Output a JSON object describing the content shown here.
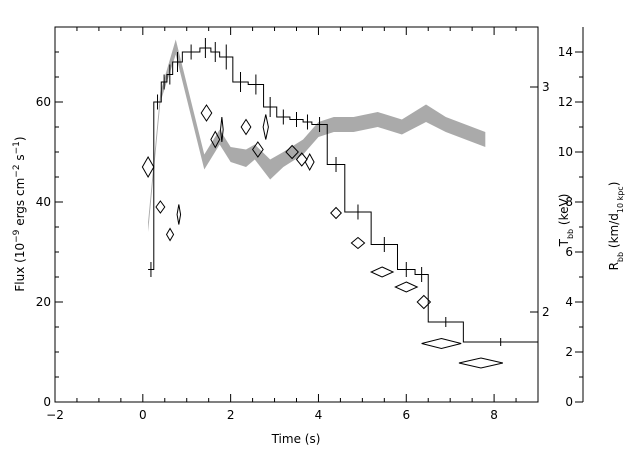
{
  "chart_data": {
    "type": "line",
    "title": "",
    "xlabel": "Time (s)",
    "ylabel_left": "Flux (10⁻⁹ ergs cm⁻² s⁻¹)",
    "ylabel_right_inner": "T_bb (keV)",
    "ylabel_right_outer": "R_bb (km/d_10 kpc)",
    "xlim": [
      -2,
      9
    ],
    "ylim_left": [
      0,
      75
    ],
    "ylim_right_outer": [
      0,
      15
    ],
    "x_ticks": [
      -2,
      0,
      2,
      4,
      6,
      8
    ],
    "x_tick_labels": [
      "−2",
      "0",
      "2",
      "4",
      "6",
      "8"
    ],
    "y_left_ticks": [
      0,
      20,
      40,
      60
    ],
    "y_left_tick_labels": [
      "0",
      "20",
      "40",
      "60"
    ],
    "y_right_outer_ticks": [
      0,
      2,
      4,
      6,
      8,
      10,
      12,
      14
    ],
    "y_right_outer_tick_labels": [
      "0",
      "2",
      "4",
      "6",
      "8",
      "10",
      "12",
      "14"
    ],
    "y_right_inner_ticks_keV": [
      2,
      3
    ],
    "y_right_inner_tick_labels": [
      "2",
      "3"
    ],
    "y_right_inner_tick_positions_flux_units": [
      18.0,
      63.0
    ],
    "series": [
      {
        "kind": "step-with-errorbars",
        "color": "#000000",
        "bins": [
          {
            "x0": 0.12,
            "x1": 0.25,
            "y": 26.5,
            "err": 1.5
          },
          {
            "x0": 0.25,
            "x1": 0.42,
            "y": 60.0,
            "err": 1.5
          },
          {
            "x0": 0.42,
            "x1": 0.55,
            "y": 64.0,
            "err": 1.5
          },
          {
            "x0": 0.55,
            "x1": 0.68,
            "y": 65.5,
            "err": 2.0
          },
          {
            "x0": 0.68,
            "x1": 0.9,
            "y": 68.0,
            "err": 2.0
          },
          {
            "x0": 0.9,
            "x1": 1.3,
            "y": 70.0,
            "err": 1.5
          },
          {
            "x0": 1.3,
            "x1": 1.55,
            "y": 70.8,
            "err": 2.0
          },
          {
            "x0": 1.55,
            "x1": 1.75,
            "y": 70.0,
            "err": 2.0
          },
          {
            "x0": 1.75,
            "x1": 2.05,
            "y": 69.0,
            "err": 2.5
          },
          {
            "x0": 2.05,
            "x1": 2.4,
            "y": 64.0,
            "err": 2.0
          },
          {
            "x0": 2.4,
            "x1": 2.75,
            "y": 63.5,
            "err": 2.0
          },
          {
            "x0": 2.75,
            "x1": 3.05,
            "y": 59.0,
            "err": 2.0
          },
          {
            "x0": 3.05,
            "x1": 3.35,
            "y": 57.0,
            "err": 1.5
          },
          {
            "x0": 3.35,
            "x1": 3.65,
            "y": 56.5,
            "err": 1.5
          },
          {
            "x0": 3.65,
            "x1": 3.85,
            "y": 56.0,
            "err": 1.5
          },
          {
            "x0": 3.85,
            "x1": 4.2,
            "y": 55.5,
            "err": 1.5
          },
          {
            "x0": 4.2,
            "x1": 4.6,
            "y": 47.5,
            "err": 1.5
          },
          {
            "x0": 4.6,
            "x1": 5.2,
            "y": 38.0,
            "err": 1.5
          },
          {
            "x0": 5.2,
            "x1": 5.8,
            "y": 31.5,
            "err": 1.5
          },
          {
            "x0": 5.8,
            "x1": 6.2,
            "y": 26.5,
            "err": 1.5
          },
          {
            "x0": 6.2,
            "x1": 6.5,
            "y": 25.5,
            "err": 1.5
          },
          {
            "x0": 6.5,
            "x1": 7.3,
            "y": 16.0,
            "err": 1.0
          },
          {
            "x0": 7.3,
            "x1": 9.0,
            "y": 12.0,
            "err": 0.8
          }
        ]
      },
      {
        "kind": "shaded-band",
        "color": "#aaaaaa",
        "points": [
          {
            "x": 0.12,
            "lo": 34.0,
            "hi": 36.0
          },
          {
            "x": 0.4,
            "lo": 60.0,
            "hi": 62.0
          },
          {
            "x": 0.75,
            "lo": 69.5,
            "hi": 72.5
          },
          {
            "x": 1.4,
            "lo": 46.5,
            "hi": 49.5
          },
          {
            "x": 1.75,
            "lo": 51.5,
            "hi": 54.5
          },
          {
            "x": 2.0,
            "lo": 48.0,
            "hi": 51.0
          },
          {
            "x": 2.35,
            "lo": 47.0,
            "hi": 50.5
          },
          {
            "x": 2.55,
            "lo": 48.5,
            "hi": 51.5
          },
          {
            "x": 2.9,
            "lo": 44.5,
            "hi": 48.5
          },
          {
            "x": 3.2,
            "lo": 47.0,
            "hi": 50.0
          },
          {
            "x": 3.65,
            "lo": 49.5,
            "hi": 52.5
          },
          {
            "x": 4.0,
            "lo": 53.0,
            "hi": 56.0
          },
          {
            "x": 4.35,
            "lo": 54.0,
            "hi": 57.0
          },
          {
            "x": 4.8,
            "lo": 54.0,
            "hi": 57.0
          },
          {
            "x": 5.35,
            "lo": 55.0,
            "hi": 58.0
          },
          {
            "x": 5.9,
            "lo": 53.5,
            "hi": 56.5
          },
          {
            "x": 6.45,
            "lo": 56.0,
            "hi": 59.5
          },
          {
            "x": 6.9,
            "lo": 54.0,
            "hi": 57.0
          },
          {
            "x": 7.8,
            "lo": 51.0,
            "hi": 54.0
          }
        ]
      },
      {
        "kind": "diamonds",
        "color": "#000000",
        "points": [
          {
            "x": 0.12,
            "y": 47.0,
            "xerr": 0.13,
            "yerr": 2.0
          },
          {
            "x": 0.4,
            "y": 39.0,
            "xerr": 0.1,
            "yerr": 1.2
          },
          {
            "x": 0.62,
            "y": 33.5,
            "xerr": 0.08,
            "yerr": 1.2
          },
          {
            "x": 0.82,
            "y": 37.5,
            "xerr": 0.04,
            "yerr": 2.0
          },
          {
            "x": 1.45,
            "y": 57.8,
            "xerr": 0.12,
            "yerr": 1.6
          },
          {
            "x": 1.65,
            "y": 52.5,
            "xerr": 0.1,
            "yerr": 1.6
          },
          {
            "x": 1.8,
            "y": 54.5,
            "xerr": 0.03,
            "yerr": 2.5
          },
          {
            "x": 2.35,
            "y": 55.0,
            "xerr": 0.11,
            "yerr": 1.5
          },
          {
            "x": 2.62,
            "y": 50.5,
            "xerr": 0.12,
            "yerr": 1.5
          },
          {
            "x": 2.8,
            "y": 55.0,
            "xerr": 0.06,
            "yerr": 2.5
          },
          {
            "x": 3.4,
            "y": 50.0,
            "xerr": 0.14,
            "yerr": 1.3
          },
          {
            "x": 3.62,
            "y": 48.5,
            "xerr": 0.12,
            "yerr": 1.3
          },
          {
            "x": 3.8,
            "y": 48.0,
            "xerr": 0.1,
            "yerr": 1.6
          },
          {
            "x": 4.4,
            "y": 37.8,
            "xerr": 0.12,
            "yerr": 1.1
          },
          {
            "x": 4.9,
            "y": 31.8,
            "xerr": 0.15,
            "yerr": 1.1
          },
          {
            "x": 5.45,
            "y": 26.0,
            "xerr": 0.25,
            "yerr": 1.0
          },
          {
            "x": 6.0,
            "y": 23.0,
            "xerr": 0.25,
            "yerr": 1.0
          },
          {
            "x": 6.4,
            "y": 20.0,
            "xerr": 0.15,
            "yerr": 1.3
          },
          {
            "x": 6.8,
            "y": 11.7,
            "xerr": 0.45,
            "yerr": 1.0
          },
          {
            "x": 7.7,
            "y": 7.8,
            "xerr": 0.5,
            "yerr": 1.0
          }
        ]
      }
    ],
    "grid": false,
    "legend": "none"
  }
}
